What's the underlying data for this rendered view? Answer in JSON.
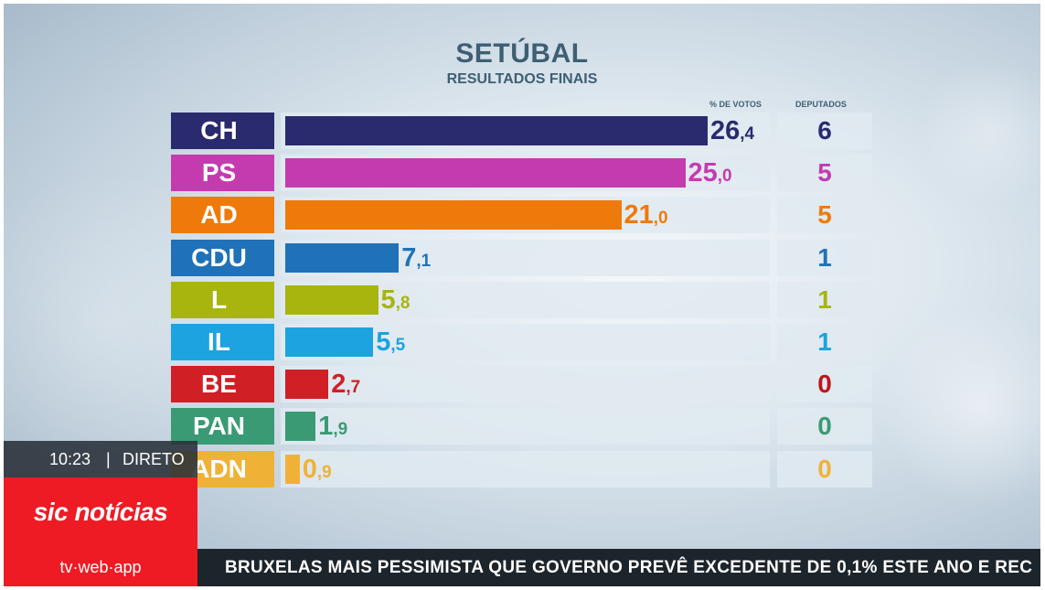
{
  "title": "SETÚBAL",
  "subtitle": "RESULTADOS FINAIS",
  "headers": {
    "votes": "% DE VOTOS",
    "seats": "DEPUTADOS"
  },
  "chart_data": {
    "type": "bar",
    "title": "SETÚBAL",
    "subtitle": "RESULTADOS FINAIS",
    "categories": [
      "CH",
      "PS",
      "AD",
      "CDU",
      "L",
      "IL",
      "BE",
      "PAN",
      "ADN"
    ],
    "series": [
      {
        "name": "% DE VOTOS",
        "values": [
          26.4,
          25.0,
          21.0,
          7.1,
          5.8,
          5.5,
          2.7,
          1.9,
          0.9
        ]
      },
      {
        "name": "DEPUTADOS",
        "values": [
          6,
          5,
          5,
          1,
          1,
          1,
          0,
          0,
          0
        ]
      }
    ],
    "value_labels": [
      {
        "int": "26",
        "dec": ",4"
      },
      {
        "int": "25",
        "dec": ",0"
      },
      {
        "int": "21",
        "dec": ",0"
      },
      {
        "int": "7",
        "dec": ",1"
      },
      {
        "int": "5",
        "dec": ",8"
      },
      {
        "int": "5",
        "dec": ",5"
      },
      {
        "int": "2",
        "dec": ",7"
      },
      {
        "int": "1",
        "dec": ",9"
      },
      {
        "int": "0",
        "dec": ",9"
      }
    ],
    "colors": [
      "#2a2a6e",
      "#c43bb0",
      "#ef7a0c",
      "#1f72b8",
      "#a8b50e",
      "#1ca3e0",
      "#d11f26",
      "#3a9a74",
      "#f0b236"
    ],
    "max_value": 26.4
  },
  "status": {
    "time": "10:23",
    "separator": "|",
    "mode": "DIRETO"
  },
  "brand": {
    "logo": "sic notícias",
    "platforms": "tv·web·app"
  },
  "ticker": {
    "text": "BRUXELAS MAIS PESSIMISTA QUE GOVERNO PREVÊ EXCEDENTE DE 0,1% ESTE ANO E REC"
  }
}
